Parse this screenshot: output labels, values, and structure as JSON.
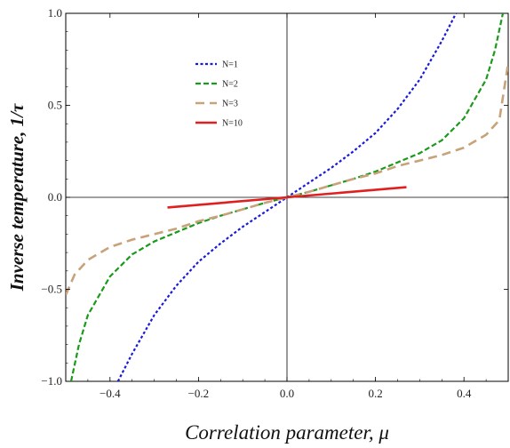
{
  "chart_data": {
    "type": "line",
    "xlabel": "Correlation parameter, μ",
    "ylabel": "Inverse temperature, 1/τ",
    "xlim": [
      -0.5,
      0.5
    ],
    "ylim": [
      -1.0,
      1.0
    ],
    "x_ticks": [
      -0.4,
      -0.2,
      0.0,
      0.2,
      0.4
    ],
    "x_tick_labels": [
      "−0.4",
      "−0.2",
      "0.0",
      "0.2",
      "0.4"
    ],
    "y_ticks": [
      -1.0,
      -0.5,
      0.0,
      0.5,
      1.0
    ],
    "y_tick_labels": [
      "−1.0",
      "−0.5",
      "0.0",
      "0.5",
      "1.0"
    ],
    "grid": false,
    "legend_position": "upper-left",
    "series": [
      {
        "name": "N=1",
        "color": "#1a1adb",
        "style": "dotted",
        "x": [
          -0.382,
          -0.35,
          -0.3,
          -0.25,
          -0.2,
          -0.15,
          -0.1,
          -0.05,
          0.0,
          0.05,
          0.1,
          0.15,
          0.2,
          0.25,
          0.3,
          0.35,
          0.382
        ],
        "y": [
          -1.0,
          -0.85,
          -0.64,
          -0.48,
          -0.35,
          -0.25,
          -0.16,
          -0.08,
          0.0,
          0.08,
          0.16,
          0.25,
          0.35,
          0.48,
          0.64,
          0.85,
          1.0
        ]
      },
      {
        "name": "N=2",
        "color": "#1a9a1a",
        "style": "dashed",
        "x": [
          -0.488,
          -0.47,
          -0.45,
          -0.4,
          -0.35,
          -0.3,
          -0.25,
          -0.2,
          -0.15,
          -0.1,
          -0.05,
          0.0,
          0.05,
          0.1,
          0.15,
          0.2,
          0.25,
          0.3,
          0.35,
          0.4,
          0.45,
          0.47,
          0.488
        ],
        "y": [
          -1.0,
          -0.8,
          -0.64,
          -0.43,
          -0.31,
          -0.24,
          -0.19,
          -0.14,
          -0.1,
          -0.065,
          -0.03,
          0.0,
          0.03,
          0.065,
          0.1,
          0.14,
          0.19,
          0.24,
          0.31,
          0.43,
          0.64,
          0.8,
          1.0
        ]
      },
      {
        "name": "N=3",
        "color": "#c8a27a",
        "style": "long-dashed",
        "x": [
          -0.5,
          -0.48,
          -0.45,
          -0.4,
          -0.35,
          -0.3,
          -0.25,
          -0.2,
          -0.15,
          -0.1,
          -0.05,
          0.0,
          0.05,
          0.1,
          0.15,
          0.2,
          0.25,
          0.3,
          0.35,
          0.4,
          0.45,
          0.48,
          0.5
        ],
        "y": [
          -0.53,
          -0.42,
          -0.34,
          -0.27,
          -0.23,
          -0.2,
          -0.17,
          -0.13,
          -0.1,
          -0.065,
          -0.03,
          0.0,
          0.03,
          0.065,
          0.1,
          0.13,
          0.17,
          0.2,
          0.23,
          0.27,
          0.34,
          0.42,
          0.73
        ]
      },
      {
        "name": "N=10",
        "color": "#e02020",
        "style": "solid",
        "x": [
          -0.27,
          0.0,
          0.27
        ],
        "y": [
          -0.055,
          0.0,
          0.055
        ]
      }
    ]
  }
}
